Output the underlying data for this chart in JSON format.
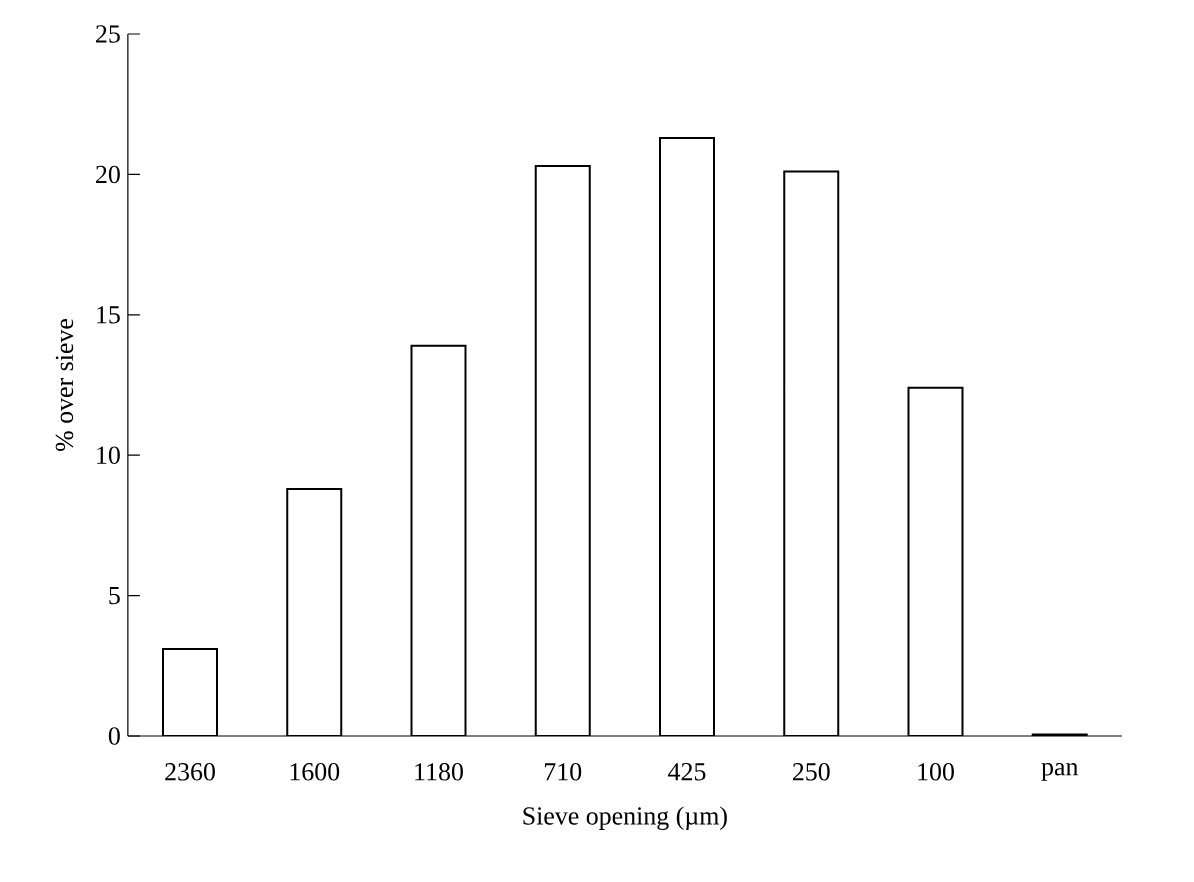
{
  "chart_data": {
    "type": "bar",
    "xlabel": "Sieve opening (µm)",
    "ylabel": "% over sieve",
    "categories": [
      "2360",
      "1600",
      "1180",
      "710",
      "425",
      "250",
      "100",
      "pan"
    ],
    "values": [
      3.1,
      8.8,
      13.9,
      20.3,
      21.3,
      20.1,
      12.4,
      0.05
    ],
    "color": "#ffffff",
    "ylim": [
      0,
      25
    ],
    "yticks": [
      0,
      5,
      10,
      15,
      20,
      25
    ],
    "grid": false
  }
}
